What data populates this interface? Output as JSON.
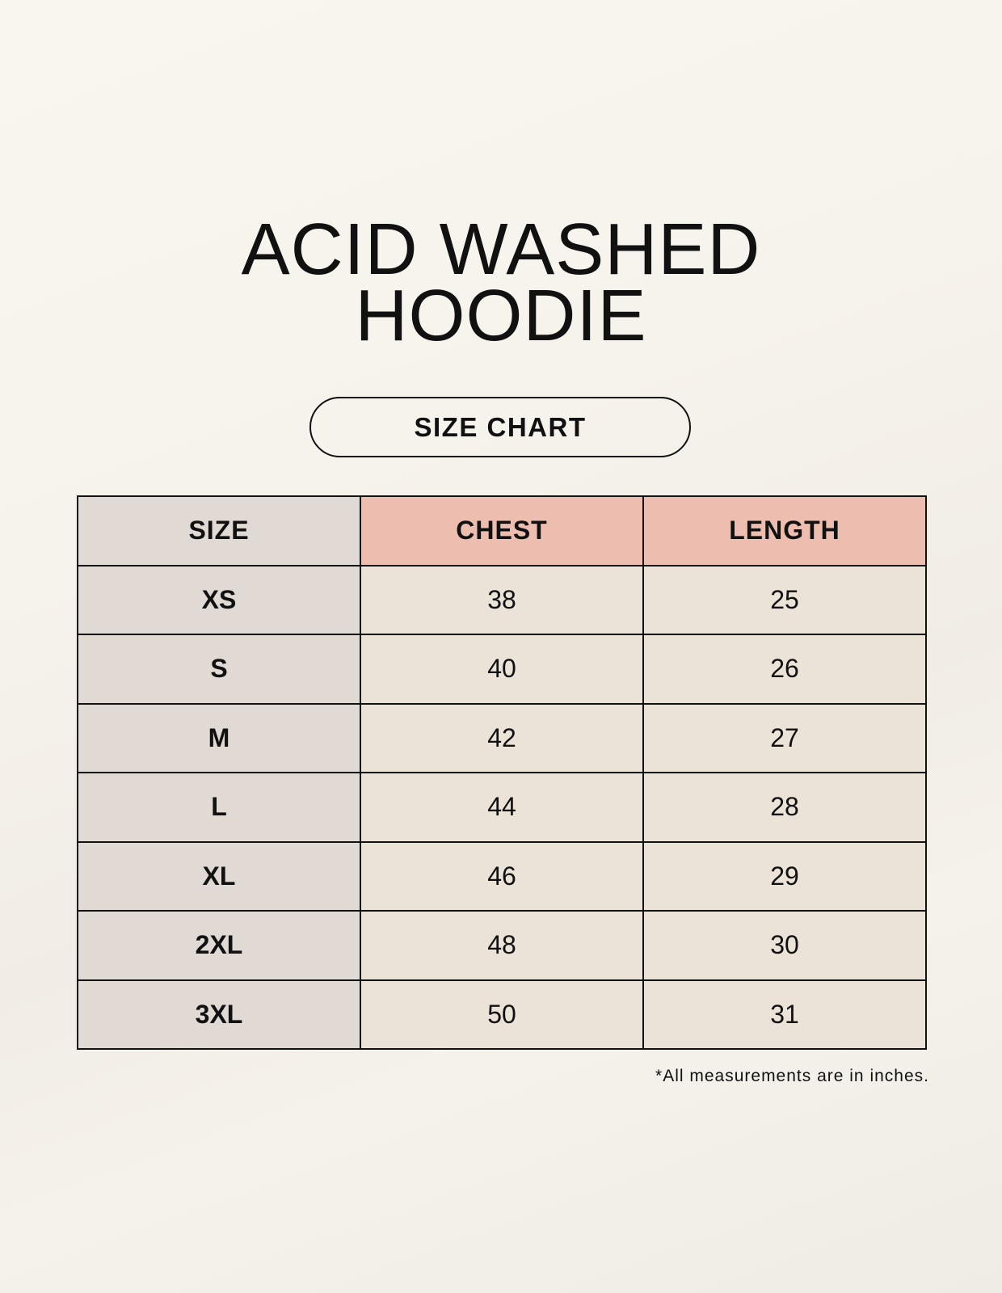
{
  "title_line1": "ACID WASHED",
  "title_line2": "HOODIE",
  "subtitle": "SIZE CHART",
  "table": {
    "headers": [
      "SIZE",
      "CHEST",
      "LENGTH"
    ],
    "rows": [
      [
        "XS",
        "38",
        "25"
      ],
      [
        "S",
        "40",
        "26"
      ],
      [
        "M",
        "42",
        "27"
      ],
      [
        "L",
        "44",
        "28"
      ],
      [
        "XL",
        "46",
        "29"
      ],
      [
        "2XL",
        "48",
        "30"
      ],
      [
        "3XL",
        "50",
        "31"
      ]
    ]
  },
  "footnote": "*All measurements are in inches.",
  "colors": {
    "size_column": "#e0d9d4",
    "header_accent": "#edbdaf",
    "value_cells": "#ebe2d8"
  }
}
